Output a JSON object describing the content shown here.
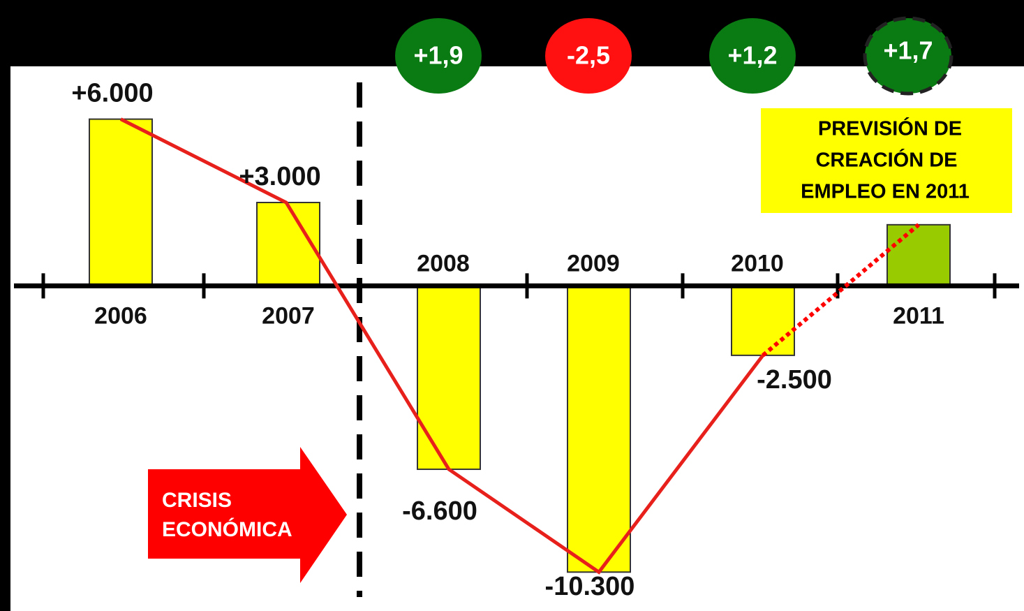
{
  "chart_data": {
    "type": "bar",
    "categories": [
      "2006",
      "2007",
      "2008",
      "2009",
      "2010",
      "2011"
    ],
    "values": [
      6000,
      3000,
      -6600,
      -10300,
      -2500,
      2200
    ],
    "value_labels": [
      "+6.000",
      "+3.000",
      "-6.600",
      "-10.300",
      "-2.500",
      null
    ],
    "colors": [
      "#ffff00",
      "#ffff00",
      "#ffff00",
      "#ffff00",
      "#ffff00",
      "#99cc00"
    ],
    "forecast": [
      false,
      false,
      false,
      false,
      false,
      true
    ],
    "line_color": "#e8201c",
    "ylim": [
      -11700,
      7900
    ],
    "gdp_growth": {
      "categories": [
        "2008",
        "2009",
        "2010",
        "2011"
      ],
      "values": [
        1.9,
        -2.5,
        1.2,
        1.7
      ],
      "value_labels": [
        "+1,9",
        "-2,5",
        "+1,2",
        "+1,7"
      ],
      "colors": [
        "#0a7a12",
        "#ff1111",
        "#0a7a12",
        "#0a7a12"
      ]
    },
    "crisis_label": [
      "CRISIS",
      "ECONÓMICA"
    ],
    "forecast_note": [
      "PREVISIÓN DE",
      "CREACIÓN DE",
      "EMPLEO EN 2011"
    ]
  }
}
